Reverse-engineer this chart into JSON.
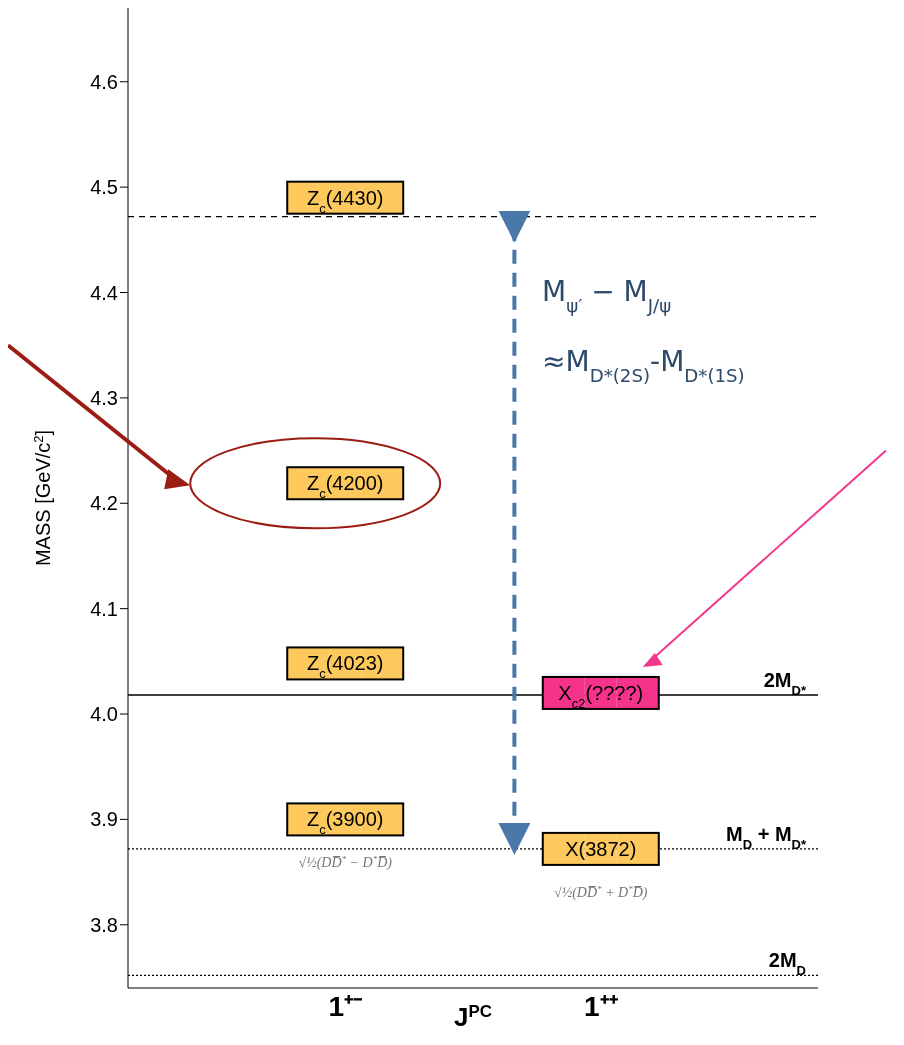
{
  "chart_data": {
    "type": "scatter",
    "xlabel": "J$^{PC}$",
    "ylabel": "MASS  [GeV/c$^{2}$]",
    "categories": [
      "1⁺⁻",
      "1⁺⁺"
    ],
    "series": [
      {
        "name": "Z$_{c}$(4430)",
        "color": "#fdc95c",
        "x": [
          "1⁺⁻"
        ],
        "values": [
          4.49
        ]
      },
      {
        "name": "Z$_{c}$(4200)",
        "color": "#fdc95c",
        "x": [
          "1⁺⁻"
        ],
        "values": [
          4.219
        ]
      },
      {
        "name": "Z$_{c}$(4023)",
        "color": "#fdc95c",
        "x": [
          "1⁺⁻"
        ],
        "values": [
          4.048
        ]
      },
      {
        "name": "Z$_{c}$(3900)",
        "color": "#fdc95c",
        "x": [
          "1⁺⁻"
        ],
        "values": [
          3.9
        ]
      },
      {
        "name": "X$_{c2}$(????)",
        "color": "#f5338a",
        "x": [
          "1⁺⁺"
        ],
        "values": [
          4.02
        ]
      },
      {
        "name": "X(3872)",
        "color": "#fdc95c",
        "x": [
          "1⁺⁺"
        ],
        "values": [
          3.872
        ]
      }
    ],
    "ylim": [
      3.74,
      4.67
    ],
    "yticks": [
      3.8,
      3.9,
      {
        "value": 4,
        "label": "4.0"
      },
      4.1,
      4.2,
      4.3,
      4.4,
      4.5,
      4.6
    ],
    "ref_lines": [
      {
        "axis": "y",
        "value": 4.472,
        "line_style": "dashed"
      },
      {
        "axis": "y",
        "value": 4.018,
        "label": "2M$_{D*}$",
        "line_style": "solid"
      },
      {
        "axis": "y",
        "value": 3.872,
        "label": "M$_{D}$ + M$_{D*}$",
        "line_style": "dotted"
      },
      {
        "axis": "y",
        "value": 3.752,
        "label": "2M$_{D}$",
        "line_style": "dotted"
      }
    ],
    "annotations": [
      "M$_{ψ′}$ − M$_{J/ψ}$",
      "≈M$_{D*(2S)}$-M$_{D*(1S)}$",
      "√½(DD̅$^{*}$ − D$^{*}$D̅)",
      "√½(DD̅$^{*}$ + D$^{*}$D̅)"
    ]
  }
}
